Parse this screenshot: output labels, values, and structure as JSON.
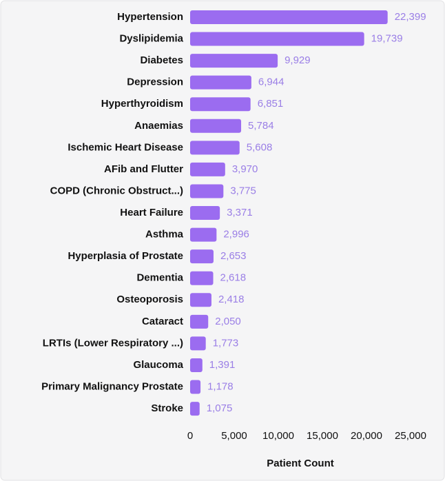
{
  "chart_data": {
    "type": "hbar",
    "x_label": "Patient Count",
    "categories": [
      "Hypertension",
      "Dyslipidemia",
      "Diabetes",
      "Depression",
      "Hyperthyroidism",
      "Anaemias",
      "Ischemic Heart Disease",
      "AFib and Flutter",
      "COPD (Chronic Obstruct...)",
      "Heart Failure",
      "Asthma",
      "Hyperplasia of Prostate",
      "Dementia",
      "Osteoporosis",
      "Cataract",
      "LRTIs (Lower Respiratory ...)",
      "Glaucoma",
      "Primary Malignancy Prostate",
      "Stroke"
    ],
    "values": [
      22399,
      19739,
      9929,
      6944,
      6851,
      5784,
      5608,
      3970,
      3775,
      3371,
      2996,
      2653,
      2618,
      2418,
      2050,
      1773,
      1391,
      1178,
      1075
    ],
    "value_labels": [
      "22,399",
      "19,739",
      "9,929",
      "6,944",
      "6,851",
      "5,784",
      "5,608",
      "3,970",
      "3,775",
      "3,371",
      "2,996",
      "2,653",
      "2,618",
      "2,418",
      "2,050",
      "1,773",
      "1,391",
      "1,178",
      "1,075"
    ],
    "color": "#9b6cf0",
    "xlim": [
      0,
      25000
    ],
    "xticks": [
      0,
      {
        "value": 5000,
        "label": "5,000"
      },
      {
        "value": 10000,
        "label": "10,000"
      },
      {
        "value": 15000,
        "label": "15,000"
      },
      {
        "value": 20000,
        "label": "20,000"
      },
      {
        "value": 25000,
        "label": "25,000"
      }
    ],
    "grid": false
  }
}
